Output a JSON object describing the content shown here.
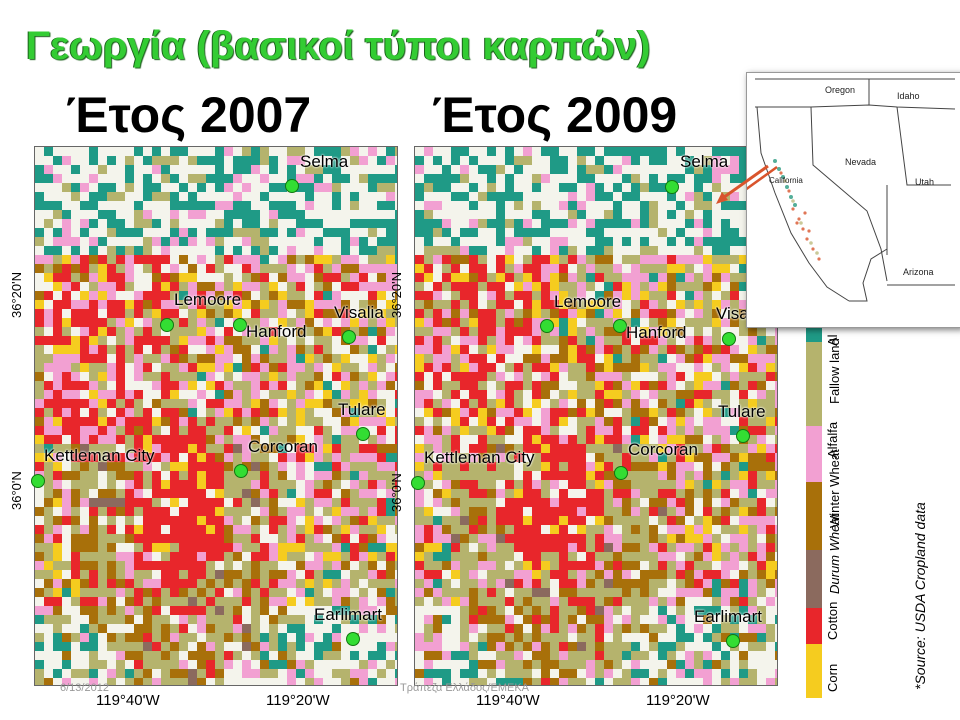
{
  "title": "Γεωργία (βασικοί τύποι καρπών)",
  "maps": [
    {
      "year": "Έτος 2007",
      "places": [
        "Selma",
        "Lemoore",
        "Hanford",
        "Visalia",
        "Tulare",
        "Corcoran",
        "Kettleman City",
        "Earlimart"
      ],
      "lat_labels": [
        "36°20'N",
        "36°0'N"
      ]
    },
    {
      "year": "Έτος 2009",
      "places": [
        "Selma",
        "Lemoore",
        "Hanford",
        "Visa",
        "Tulare",
        "Corcoran",
        "Kettleman City",
        "Earlimart"
      ],
      "lat_labels": [
        "36°20'N",
        "36°0'N"
      ]
    }
  ],
  "lon_labels": [
    "119°40'W",
    "119°20'W",
    "119°40'W",
    "119°20'W"
  ],
  "legend": {
    "items": [
      {
        "label": "Corn",
        "color": "#f5cc1f"
      },
      {
        "label": "Cotton",
        "color": "#e8262b"
      },
      {
        "label": "Durum Wheat",
        "color": "#8b6a5e"
      },
      {
        "label": "Winter Wheat",
        "color": "#a8700a"
      },
      {
        "label": "Alfalfa",
        "color": "#f2a0d2"
      },
      {
        "label": "Fallow land",
        "color": "#b5b36d"
      },
      {
        "label": "Al",
        "color": "#1f9a86"
      }
    ]
  },
  "source": "*Source: USDA Cropland data",
  "inset": {
    "states": [
      "Oregon",
      "Idaho",
      "Nevada",
      "Utah",
      "California",
      "Arizona"
    ]
  },
  "footer": {
    "date": "6/13/2012",
    "org": "Τράπεζα Ελλάδος/ΕΜΕΚΑ"
  }
}
